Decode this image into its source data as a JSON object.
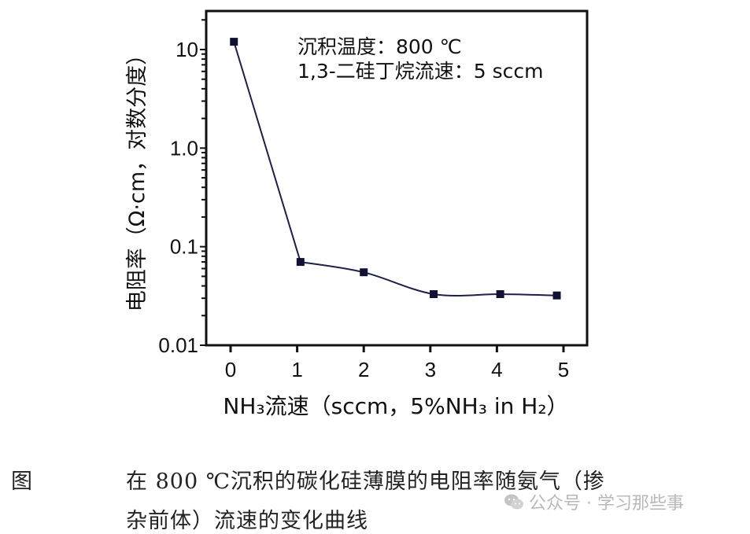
{
  "chart_data": {
    "type": "line",
    "title": "",
    "annotations": [
      "沉积温度：800 ℃",
      "1,3-二硅丁烷流速：5 sccm"
    ],
    "xlabel": "NH₃流速（sccm，5%NH₃ in H₂）",
    "ylabel": "电阻率（Ω·cm，对数分度）",
    "yscale": "log",
    "xlim": [
      -0.25,
      5.25
    ],
    "ylim": [
      0.01,
      20
    ],
    "xticks": [
      "0",
      "1",
      "2",
      "3",
      "4",
      "5"
    ],
    "yticks": [
      "0.01",
      "0.1",
      "1.0",
      "10"
    ],
    "grid": false,
    "legend": null,
    "series": [
      {
        "name": "电阻率",
        "x": [
          0.05,
          1.05,
          2.0,
          3.05,
          4.05,
          4.9
        ],
        "y": [
          12,
          0.07,
          0.055,
          0.033,
          0.033,
          0.032
        ]
      }
    ]
  },
  "figure": {
    "label": "图",
    "caption_line1": "在 800 ℃沉积的碳化硅薄膜的电阻率随氨气（掺",
    "caption_line2": "杂前体）流速的变化曲线"
  },
  "watermark": {
    "text": "公众号 · 学习那些事",
    "icon": "wechat-icon"
  },
  "colors": {
    "axis": "#111111",
    "line": "#1f1f4a",
    "marker": "#111133"
  }
}
